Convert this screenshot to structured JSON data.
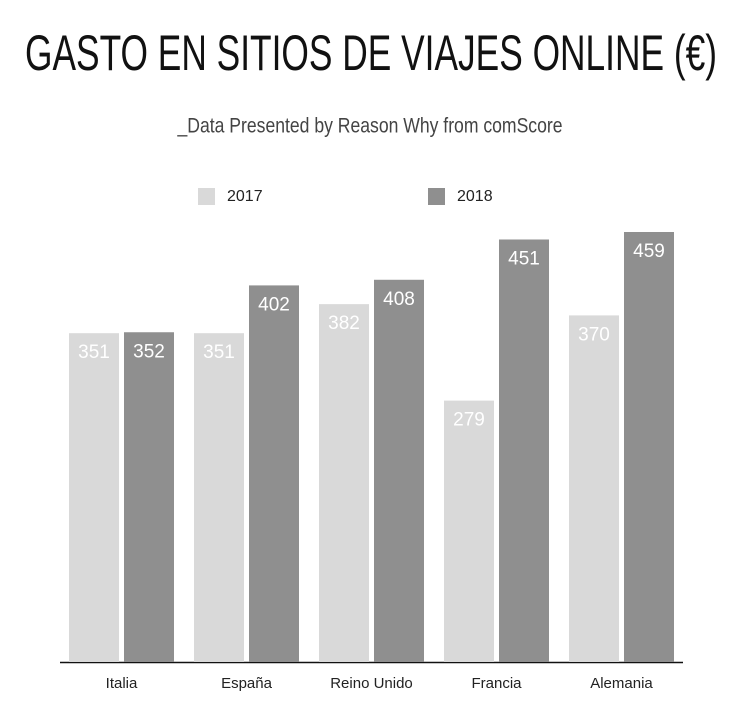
{
  "chart_data": {
    "type": "bar",
    "title": "GASTO EN SITIOS DE VIAJES ONLINE (€)",
    "subtitle": "_Data Presented by Reason Why from comScore",
    "categories": [
      "Italia",
      "España",
      "Reino Unido",
      "Francia",
      "Alemania"
    ],
    "series": [
      {
        "name": "2017",
        "color": "#d9d9d9",
        "values": [
          351,
          351,
          382,
          279,
          370
        ]
      },
      {
        "name": "2018",
        "color": "#8f8f8f",
        "values": [
          352,
          402,
          408,
          451,
          459
        ]
      }
    ]
  }
}
